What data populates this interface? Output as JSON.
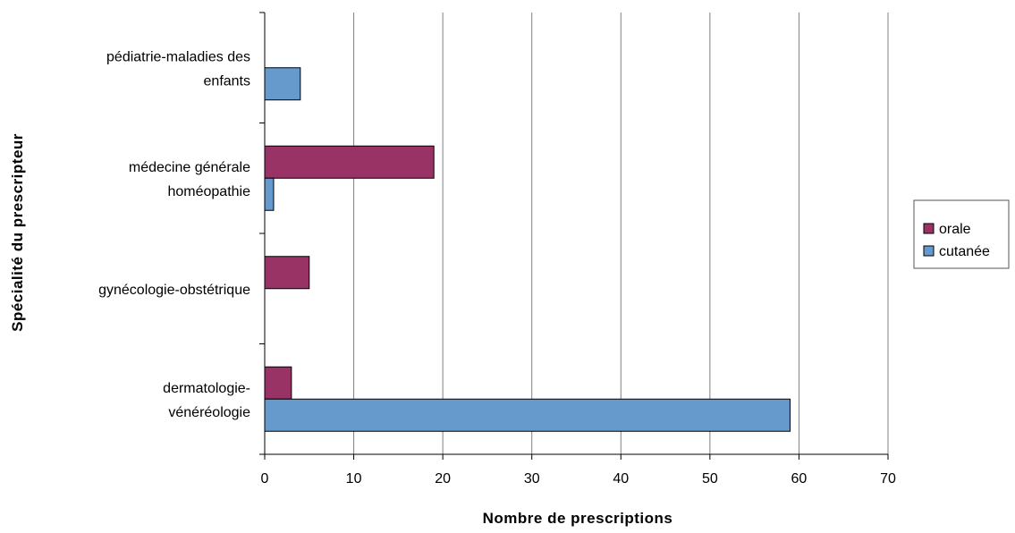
{
  "chart_data": {
    "type": "bar",
    "orientation": "horizontal",
    "categories": [
      [
        "pédiatrie-maladies des",
        "enfants"
      ],
      [
        "médecine générale",
        "homéopathie"
      ],
      [
        "gynécologie-obstétrique"
      ],
      [
        "dermatologie-",
        "vénéréologie"
      ]
    ],
    "series": [
      {
        "name": "orale",
        "color": "#993366",
        "values": [
          0,
          19,
          5,
          3
        ]
      },
      {
        "name": "cutanée",
        "color": "#6699cc",
        "values": [
          4,
          1,
          0,
          59
        ]
      }
    ],
    "xlabel": "Nombre de prescriptions",
    "ylabel": "Spécialité du prescripteur",
    "xlim": [
      0,
      70
    ],
    "xticks": [
      0,
      10,
      20,
      30,
      40,
      50,
      60,
      70
    ],
    "grid": true,
    "legend": "right"
  }
}
